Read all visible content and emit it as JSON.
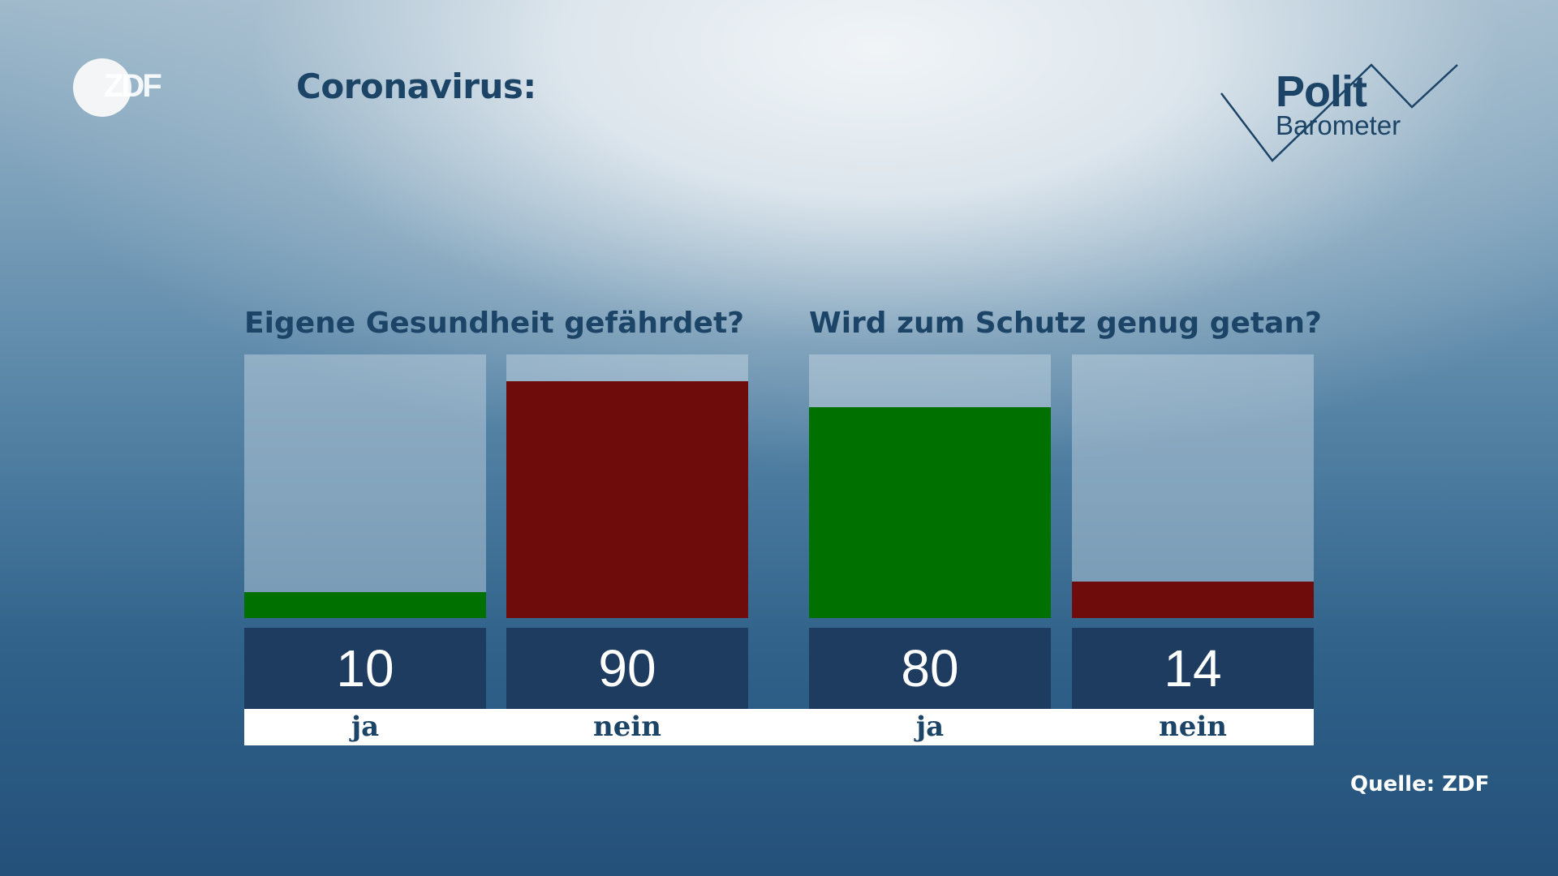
{
  "header": {
    "logo_text": "ZDF",
    "title": "Coronavirus:",
    "brand_line1": "Polit",
    "brand_line2": "Barometer"
  },
  "chart_data": {
    "type": "bar",
    "ylim": [
      0,
      100
    ],
    "groups": [
      {
        "question": "Eigene Gesundheit gefährdet?",
        "categories": [
          "ja",
          "nein"
        ],
        "values": [
          10,
          90
        ],
        "colors": [
          "#007000",
          "#6e0b0b"
        ]
      },
      {
        "question": "Wird zum Schutz genug getan?",
        "categories": [
          "ja",
          "nein"
        ],
        "values": [
          80,
          14
        ],
        "colors": [
          "#007000",
          "#6e0b0b"
        ]
      }
    ]
  },
  "footer": {
    "source": "Quelle: ZDF"
  }
}
